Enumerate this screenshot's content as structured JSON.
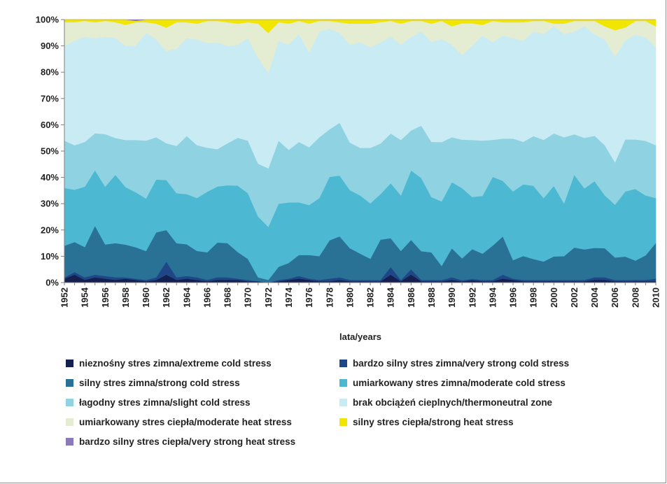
{
  "chart_data": {
    "type": "area",
    "stacked": true,
    "normalized": true,
    "xlabel": "lata/years",
    "ylabel": "",
    "ylim": [
      0,
      100
    ],
    "y_ticks": [
      "0%",
      "10%",
      "20%",
      "30%",
      "40%",
      "50%",
      "60%",
      "70%",
      "80%",
      "90%",
      "100%"
    ],
    "x_ticks": [
      "1952",
      "1954",
      "1956",
      "1958",
      "1960",
      "1962",
      "1964",
      "1966",
      "1968",
      "1970",
      "1972",
      "1974",
      "1976",
      "1978",
      "1980",
      "1982",
      "1984",
      "1986",
      "1988",
      "1990",
      "1992",
      "1994",
      "1996",
      "1998",
      "2000",
      "2002",
      "2004",
      "2006",
      "2008",
      "2010"
    ],
    "legend_position": "bottom",
    "x": [
      1952,
      1953,
      1954,
      1955,
      1956,
      1957,
      1958,
      1959,
      1960,
      1961,
      1962,
      1963,
      1964,
      1965,
      1966,
      1967,
      1968,
      1969,
      1970,
      1971,
      1972,
      1973,
      1974,
      1975,
      1976,
      1977,
      1978,
      1979,
      1980,
      1981,
      1982,
      1983,
      1984,
      1985,
      1986,
      1987,
      1988,
      1989,
      1990,
      1991,
      1992,
      1993,
      1994,
      1995,
      1996,
      1997,
      1998,
      1999,
      2000,
      2001,
      2002,
      2003,
      2004,
      2005,
      2006,
      2007,
      2008,
      2009,
      2010
    ],
    "series": [
      {
        "name": "nieznośny stres zimna/extreme cold stress",
        "color": "#16204e",
        "values": [
          1.5,
          3,
          1,
          2,
          1.5,
          1,
          1.5,
          1,
          0.5,
          1,
          3,
          1,
          1.5,
          1,
          0.5,
          1,
          1,
          1,
          0.5,
          0.5,
          0,
          0.5,
          1,
          1.5,
          1,
          0.5,
          0.5,
          1,
          0.5,
          0.5,
          0.5,
          0.5,
          3,
          0.5,
          3,
          0.5,
          0.5,
          0.5,
          1,
          0.5,
          1,
          0.5,
          0.5,
          1.5,
          1,
          0.5,
          0.5,
          0.5,
          0.5,
          0.5,
          0.5,
          0.5,
          1,
          1,
          0.5,
          0.5,
          0.5,
          0.5,
          0.5
        ]
      },
      {
        "name": "bardzo silny stres zimna/very strong cold stress",
        "color": "#1f4788",
        "values": [
          0.5,
          1,
          1,
          1,
          1,
          1,
          0.5,
          0.5,
          0.5,
          1,
          5,
          1,
          1,
          1,
          0.5,
          1,
          1,
          0.5,
          0.5,
          0,
          0,
          0.5,
          0.5,
          1,
          0.5,
          0.5,
          1,
          1,
          0.5,
          0.5,
          0.5,
          0.5,
          3,
          0.5,
          2,
          0.5,
          0.5,
          0.5,
          1,
          0.5,
          0.5,
          0.5,
          0.5,
          1.5,
          0.5,
          0.5,
          0.5,
          0.5,
          0.5,
          0.5,
          0.5,
          0.5,
          1,
          1,
          0.5,
          0.5,
          0.5,
          0.5,
          1
        ]
      },
      {
        "name": "silny stres zimna/strong cold stress",
        "color": "#2a7196",
        "values": [
          12,
          11.5,
          11.5,
          18.5,
          12,
          13,
          12.5,
          12,
          11,
          17,
          12,
          13,
          12,
          10,
          10,
          13,
          13,
          10,
          8,
          1.5,
          1,
          5,
          6,
          8,
          9,
          9,
          14.5,
          15.5,
          12,
          10,
          8,
          16,
          11,
          11,
          11,
          11,
          10.5,
          5.5,
          11,
          9,
          12,
          10,
          13,
          14.5,
          7,
          9,
          8,
          7,
          9,
          9,
          12,
          11.5,
          11,
          11,
          8.5,
          9,
          7,
          9,
          13.5
        ]
      },
      {
        "name": "umiarkowany stres zimna/moderate cold stress",
        "color": "#4db8d2",
        "values": [
          22,
          20,
          23,
          21,
          22,
          26,
          22,
          21,
          20,
          20,
          19,
          19,
          19,
          20,
          22,
          21,
          22,
          25,
          25,
          23,
          20,
          24,
          23,
          20,
          19,
          22,
          24,
          23,
          22,
          22,
          21,
          18,
          21,
          21,
          26,
          28,
          21,
          25,
          25,
          29,
          21,
          22,
          26,
          21,
          26,
          27,
          28,
          24,
          27,
          20,
          27,
          23,
          25,
          20,
          20,
          25,
          26,
          22,
          17
        ]
      },
      {
        "name": "łagodny stres zimna/slight cold stress",
        "color": "#8fd3e3",
        "values": [
          18,
          17,
          17,
          14,
          20,
          14,
          18,
          20,
          22,
          16,
          14,
          18,
          22,
          20,
          16,
          14,
          16,
          18,
          20,
          20,
          22,
          24,
          20,
          23,
          22,
          23,
          18,
          20,
          18,
          18,
          21,
          20,
          19,
          21,
          15,
          20,
          21,
          23,
          17,
          20,
          23,
          21,
          14,
          16,
          20,
          16,
          19,
          22,
          20,
          25,
          15,
          19,
          17,
          19,
          16,
          20,
          18,
          20,
          20
        ]
      },
      {
        "name": "brak obciążeń cieplnych/thermoneutral zone",
        "color": "#c9ebf4",
        "values": [
          36,
          40,
          40,
          36,
          37,
          38,
          36,
          36,
          41,
          37,
          35,
          37,
          37,
          40,
          38,
          40,
          37,
          35,
          39,
          40,
          36,
          38,
          40,
          41,
          36,
          40,
          38,
          34,
          37,
          40,
          38,
          40,
          37,
          36,
          35,
          36,
          38,
          40,
          35,
          35,
          38,
          40,
          37,
          39,
          38,
          38,
          40,
          40,
          41,
          39,
          38,
          42,
          38,
          40,
          40,
          38,
          38,
          38,
          37
        ]
      },
      {
        "name": "umiarkowany stres ciepła/moderate heat stress",
        "color": "#e4ecd2",
        "values": [
          9,
          7,
          6,
          6,
          6,
          6,
          8,
          9,
          4,
          6,
          9,
          10,
          6,
          6,
          8,
          8,
          9,
          8,
          6,
          13,
          15,
          7,
          8,
          5,
          11,
          4,
          3,
          4,
          8,
          7,
          9,
          8,
          6,
          8,
          6,
          4,
          7,
          7,
          7,
          13,
          9,
          4,
          8,
          5,
          6,
          7,
          4,
          5,
          1,
          4,
          4,
          2,
          5,
          5,
          10,
          5,
          5,
          6,
          8
        ]
      },
      {
        "name": "silny stres ciepła/strong heat stress",
        "color": "#f1e600",
        "values": [
          1,
          1,
          0.5,
          1,
          0.5,
          1,
          2,
          0.5,
          1,
          1.5,
          3,
          1,
          1,
          1.5,
          0.5,
          0.5,
          1,
          1.5,
          1,
          1.5,
          5,
          1,
          1.5,
          0.5,
          1.5,
          0.5,
          0.5,
          1,
          1.5,
          1.5,
          1.5,
          1,
          0.5,
          1.5,
          0.5,
          0.5,
          1.5,
          0.5,
          2.5,
          1.5,
          1.5,
          2,
          0.5,
          1,
          1,
          1,
          0.5,
          0.5,
          1.5,
          1.5,
          0.5,
          0.5,
          0.5,
          2.5,
          4,
          3,
          0.5,
          0.5,
          2.5
        ]
      },
      {
        "name": "bardzo silny stres ciepła/very strong heat stress",
        "color": "#8a7bb8",
        "values": [
          0,
          0,
          0,
          0,
          0,
          0,
          0,
          0.5,
          0,
          0,
          0,
          0,
          0,
          0,
          0,
          0,
          0,
          0,
          0,
          0,
          0,
          0,
          0,
          0,
          0,
          0,
          0,
          0,
          0,
          0,
          0,
          0,
          0,
          0,
          0,
          0,
          0,
          0,
          0,
          0,
          0,
          0,
          0,
          0,
          0,
          0,
          0,
          0,
          0,
          0,
          0,
          0,
          0,
          0,
          0,
          0,
          0,
          0,
          0
        ]
      }
    ]
  }
}
